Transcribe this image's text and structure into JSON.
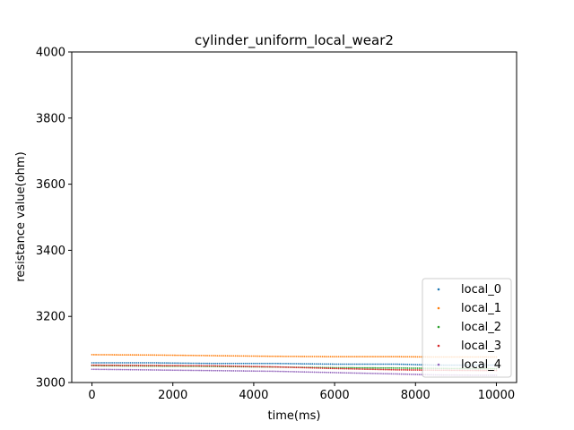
{
  "chart_data": {
    "type": "scatter",
    "title": "cylinder_uniform_local_wear2",
    "xlabel": "time(ms)",
    "ylabel": "resistance value(ohm)",
    "xlim": [
      -500,
      10500
    ],
    "ylim": [
      3000,
      4000
    ],
    "xticks": [
      0,
      2000,
      4000,
      6000,
      8000,
      10000
    ],
    "yticks": [
      3000,
      3200,
      3400,
      3600,
      3800,
      4000
    ],
    "legend_position": "lower-right",
    "grid": false,
    "series": [
      {
        "name": "local_0",
        "color": "#1f77b4",
        "points": [
          [
            0,
            3062
          ],
          [
            1500,
            3062
          ],
          [
            3000,
            3060
          ],
          [
            4500,
            3060
          ],
          [
            6000,
            3058
          ],
          [
            7500,
            3058
          ],
          [
            8500,
            3055
          ],
          [
            9500,
            3055
          ],
          [
            10000,
            3055
          ]
        ]
      },
      {
        "name": "local_1",
        "color": "#ff7f0e",
        "points": [
          [
            0,
            3083
          ],
          [
            1500,
            3082
          ],
          [
            3000,
            3080
          ],
          [
            4500,
            3078
          ],
          [
            6000,
            3077
          ],
          [
            7500,
            3077
          ],
          [
            8500,
            3076
          ],
          [
            9500,
            3076
          ],
          [
            10000,
            3076
          ]
        ]
      },
      {
        "name": "local_2",
        "color": "#2ca02c",
        "points": [
          [
            0,
            3052
          ],
          [
            1500,
            3051
          ],
          [
            3000,
            3050
          ],
          [
            4500,
            3048
          ],
          [
            6000,
            3046
          ],
          [
            7500,
            3045
          ],
          [
            8500,
            3044
          ],
          [
            9500,
            3043
          ],
          [
            10000,
            3043
          ]
        ]
      },
      {
        "name": "local_3",
        "color": "#d62728",
        "points": [
          [
            0,
            3050
          ],
          [
            1500,
            3049
          ],
          [
            3000,
            3048
          ],
          [
            4500,
            3045
          ],
          [
            6000,
            3040
          ],
          [
            7500,
            3036
          ],
          [
            8500,
            3035
          ],
          [
            9500,
            3034
          ],
          [
            10000,
            3034
          ]
        ]
      },
      {
        "name": "local_4",
        "color": "#9467bd",
        "points": [
          [
            0,
            3040
          ],
          [
            1500,
            3038
          ],
          [
            3000,
            3036
          ],
          [
            4500,
            3034
          ],
          [
            6000,
            3030
          ],
          [
            7500,
            3026
          ],
          [
            8500,
            3023
          ],
          [
            9500,
            3022
          ],
          [
            10000,
            3022
          ]
        ]
      }
    ]
  }
}
